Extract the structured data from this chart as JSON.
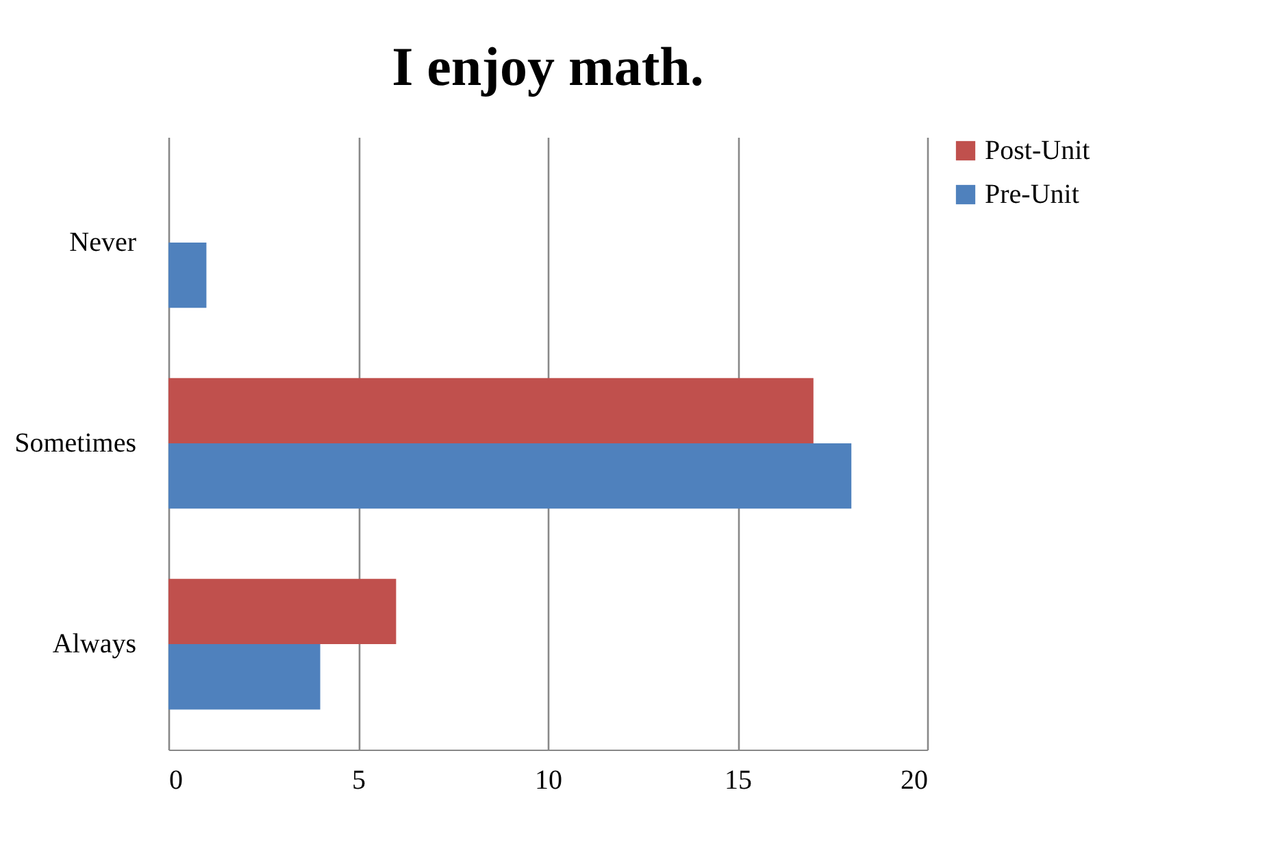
{
  "chart_data": {
    "type": "bar",
    "orientation": "horizontal",
    "title": "I enjoy math.",
    "categories": [
      "Never",
      "Sometimes",
      "Always"
    ],
    "series": [
      {
        "name": "Post-Unit",
        "color": "#c0504d",
        "values": [
          0,
          17,
          6
        ]
      },
      {
        "name": "Pre-Unit",
        "color": "#4f81bd",
        "values": [
          1,
          18,
          4
        ]
      }
    ],
    "xlim": [
      0,
      20
    ],
    "xticks": [
      0,
      5,
      10,
      15,
      20
    ],
    "grid": "x",
    "legend": "right"
  }
}
